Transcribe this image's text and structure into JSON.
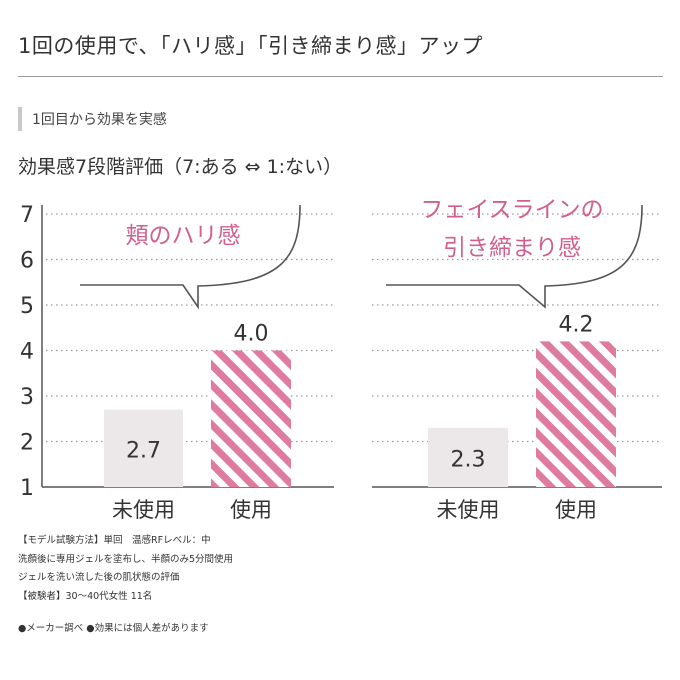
{
  "title": "1回の使用で、「ハリ感」「引き締まり感」アップ",
  "subtitle": "1回目から効果を実感",
  "scale_label": "効果感7段階評価（7:ある ⇔ 1:ない）",
  "colors": {
    "unused_bar": "#ece7e9",
    "used_stripe": "#e07ba0",
    "callout_text": "#d35f8f",
    "axis": "#555555",
    "grid_dots": "#9a9a9a"
  },
  "chart_data": [
    {
      "type": "bar",
      "title": "頬のハリ感",
      "title_lines": [
        "頬のハリ感"
      ],
      "categories": [
        "未使用",
        "使用"
      ],
      "values": [
        2.7,
        4.0
      ],
      "value_labels": [
        "2.7",
        "4.0"
      ],
      "ylim": [
        1,
        7
      ],
      "yticks": [
        1,
        2,
        3,
        4,
        5,
        6,
        7
      ],
      "grid": true
    },
    {
      "type": "bar",
      "title": "フェイスラインの引き締まり感",
      "title_lines": [
        "フェイスラインの",
        "引き締まり感"
      ],
      "categories": [
        "未使用",
        "使用"
      ],
      "values": [
        2.3,
        4.2
      ],
      "value_labels": [
        "2.3",
        "4.2"
      ],
      "ylim": [
        1,
        7
      ],
      "yticks": [
        1,
        2,
        3,
        4,
        5,
        6,
        7
      ],
      "grid": true
    }
  ],
  "notes": [
    "【モデル試験方法】単回　温感RFレベル：中",
    "洗顔後に専用ジェルを塗布し、半顔のみ5分間使用",
    "ジェルを洗い流した後の肌状態の評価",
    "【被験者】30〜40代女性 11名"
  ],
  "footer": "●メーカー調べ ●効果には個人差があります"
}
